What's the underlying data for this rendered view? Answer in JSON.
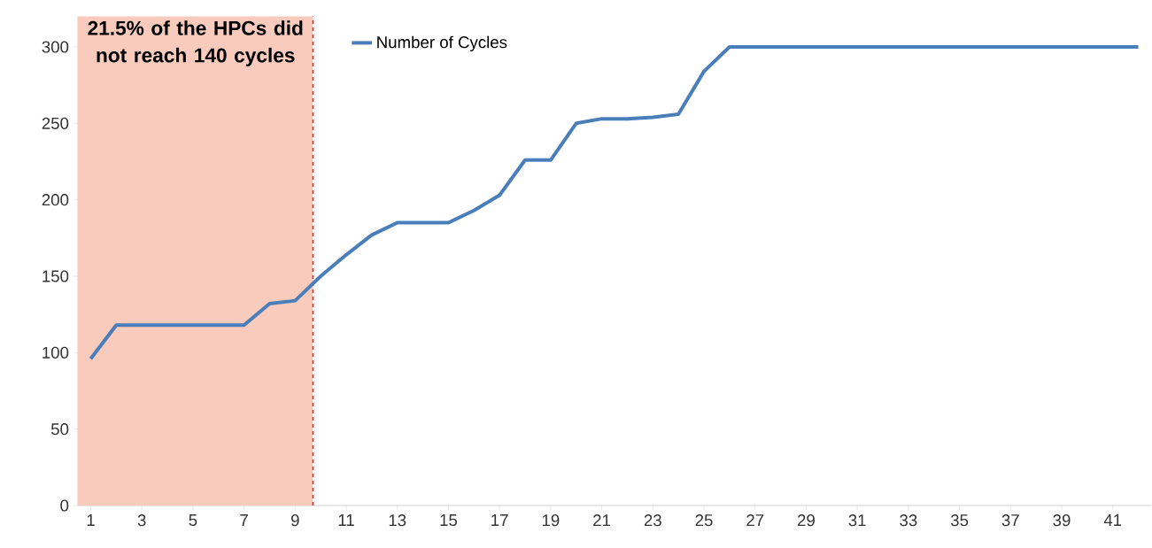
{
  "chart_data": {
    "type": "line",
    "x": [
      1,
      2,
      3,
      4,
      5,
      6,
      7,
      8,
      9,
      10,
      11,
      12,
      13,
      14,
      15,
      16,
      17,
      18,
      19,
      20,
      21,
      22,
      23,
      24,
      25,
      26,
      27,
      28,
      29,
      30,
      31,
      32,
      33,
      34,
      35,
      36,
      37,
      38,
      39,
      40,
      41,
      42
    ],
    "series": [
      {
        "name": "Number of Cycles",
        "color": "#4a7ebb",
        "values": [
          96,
          118,
          118,
          118,
          118,
          118,
          118,
          132,
          134,
          150,
          164,
          177,
          185,
          185,
          185,
          193,
          203,
          226,
          226,
          250,
          253,
          253,
          254,
          256,
          284,
          300,
          300,
          300,
          300,
          300,
          300,
          300,
          300,
          300,
          300,
          300,
          300,
          300,
          300,
          300,
          300,
          300
        ]
      }
    ],
    "xlim": [
      0.5,
      42.5
    ],
    "ylim": [
      0,
      320
    ],
    "xticks": [
      1,
      3,
      5,
      7,
      9,
      11,
      13,
      15,
      17,
      19,
      21,
      23,
      25,
      27,
      29,
      31,
      33,
      35,
      37,
      39,
      41
    ],
    "yticks": [
      0,
      50,
      100,
      150,
      200,
      250,
      300
    ],
    "bands": [
      {
        "axis": "x",
        "from": 0.5,
        "to": 9.7,
        "color": "#f8cbbd",
        "label": "21.5% of the HPCs did not reach 140 cycles"
      }
    ],
    "ref_lines": [
      {
        "axis": "x",
        "value": 9.7,
        "color": "#e02020",
        "line_style": "dashed"
      }
    ],
    "legend": "top",
    "grid": false,
    "marker": "none",
    "line_style": "solid"
  }
}
